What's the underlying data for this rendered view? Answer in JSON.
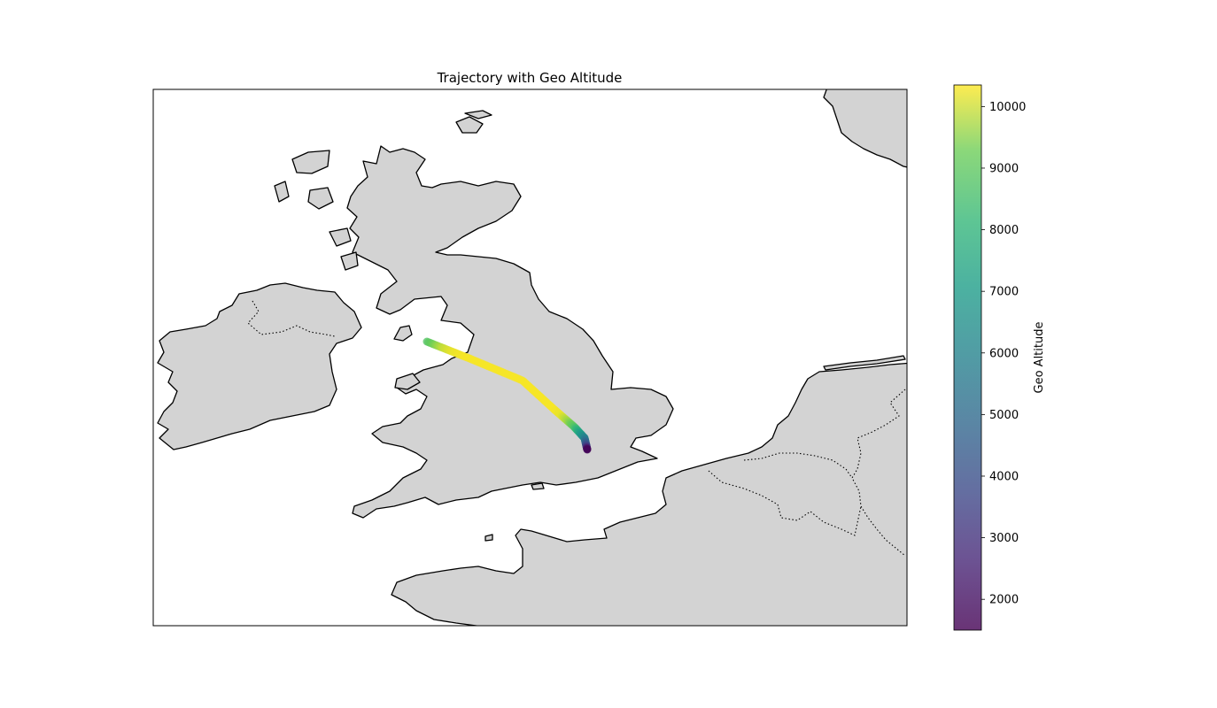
{
  "chart_data": {
    "type": "scatter",
    "title": "Trajectory with Geo Altitude",
    "colorbar": {
      "label": "Geo Altitude",
      "range": [
        1500,
        10350
      ],
      "ticks": [
        2000,
        3000,
        4000,
        5000,
        6000,
        7000,
        8000,
        9000,
        10000
      ],
      "colormap": "viridis",
      "alpha": 0.8
    },
    "map": {
      "land_color": "#d3d3d3",
      "coastline_color": "#000000",
      "borders": "dotted",
      "region": "British Isles and North-West Europe"
    },
    "trajectory": [
      [
        0,
        8800
      ],
      [
        0.03,
        9400
      ],
      [
        0.06,
        9900
      ],
      [
        0.1,
        10200
      ],
      [
        0.15,
        10300
      ],
      [
        0.2,
        10300
      ],
      [
        0.28,
        10300
      ],
      [
        0.36,
        10300
      ],
      [
        0.44,
        10300
      ],
      [
        0.5,
        10300
      ],
      [
        0.56,
        10200
      ],
      [
        0.62,
        9600
      ],
      [
        0.68,
        8700
      ],
      [
        0.73,
        7800
      ],
      [
        0.78,
        7000
      ],
      [
        0.82,
        6300
      ],
      [
        0.86,
        5600
      ],
      [
        0.89,
        5000
      ],
      [
        0.92,
        4300
      ],
      [
        0.95,
        3600
      ],
      [
        0.97,
        2800
      ],
      [
        1.0,
        1600
      ]
    ]
  }
}
